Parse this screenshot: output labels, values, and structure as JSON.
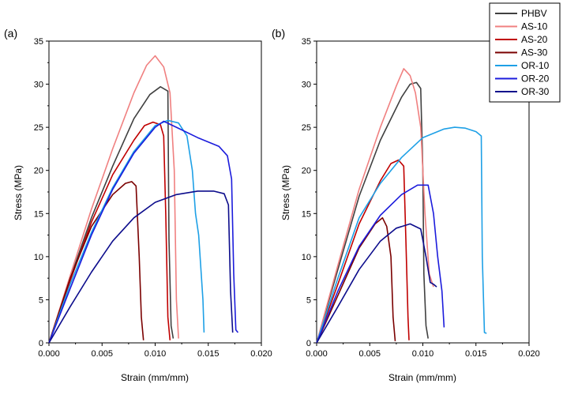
{
  "chart_data": [
    {
      "type": "line",
      "panel_label": "(a)",
      "xlabel": "Strain (mm/mm)",
      "ylabel": "Stress (MPa)",
      "xlim": [
        0,
        0.02
      ],
      "ylim": [
        0,
        35
      ],
      "xticks": [
        "0.000",
        "0.005",
        "0.010",
        "0.015",
        "0.020"
      ],
      "yticks": [
        "0",
        "5",
        "10",
        "15",
        "20",
        "25",
        "30",
        "35"
      ],
      "series": [
        {
          "name": "PHBV",
          "color": "#404040",
          "x": [
            0,
            0.002,
            0.004,
            0.006,
            0.008,
            0.0095,
            0.0105,
            0.0112,
            0.0113,
            0.0115,
            0.0117
          ],
          "y": [
            0,
            7.5,
            14.5,
            20.5,
            26,
            28.8,
            29.7,
            29.2,
            12,
            2,
            0.5
          ]
        },
        {
          "name": "AS-10",
          "color": "#f08080",
          "x": [
            0,
            0.002,
            0.004,
            0.006,
            0.008,
            0.0092,
            0.01,
            0.0108,
            0.0114,
            0.0118,
            0.012,
            0.0122
          ],
          "y": [
            0,
            7.8,
            15.5,
            22.5,
            29,
            32.2,
            33.3,
            32,
            29,
            20,
            5,
            0.5
          ]
        },
        {
          "name": "AS-20",
          "color": "#c00000",
          "x": [
            0,
            0.002,
            0.004,
            0.006,
            0.008,
            0.009,
            0.0098,
            0.0105,
            0.0108,
            0.011,
            0.0112,
            0.0114
          ],
          "y": [
            0,
            7.2,
            14,
            19.5,
            23.5,
            25.2,
            25.6,
            25.3,
            24,
            15,
            3,
            0.3
          ]
        },
        {
          "name": "AS-30",
          "color": "#7a0000",
          "x": [
            0,
            0.002,
            0.004,
            0.006,
            0.0072,
            0.0078,
            0.0082,
            0.0085,
            0.0087,
            0.0089
          ],
          "y": [
            0,
            7.5,
            13.5,
            17.2,
            18.5,
            18.7,
            18.2,
            10,
            3,
            0.3
          ]
        },
        {
          "name": "OR-10",
          "color": "#1ea0e6",
          "x": [
            0,
            0.002,
            0.004,
            0.006,
            0.008,
            0.01,
            0.0112,
            0.0122,
            0.013,
            0.0135,
            0.0138,
            0.0141,
            0.0145,
            0.0146
          ],
          "y": [
            0,
            6.8,
            12.8,
            18,
            22.2,
            25.2,
            25.8,
            25.5,
            24,
            20,
            15,
            12.5,
            5,
            1.2
          ]
        },
        {
          "name": "OR-20",
          "color": "#1c1cdc",
          "x": [
            0,
            0.002,
            0.004,
            0.006,
            0.008,
            0.01,
            0.0108,
            0.012,
            0.014,
            0.016,
            0.0168,
            0.0172,
            0.0174,
            0.0176,
            0.0178
          ],
          "y": [
            0,
            6.3,
            12.5,
            17.8,
            22,
            25,
            25.7,
            25,
            23.8,
            22.8,
            21.7,
            19,
            8,
            1.5,
            1.2
          ]
        },
        {
          "name": "OR-30",
          "color": "#0c0c8c",
          "x": [
            0,
            0.002,
            0.004,
            0.006,
            0.008,
            0.01,
            0.012,
            0.014,
            0.0155,
            0.0165,
            0.0169,
            0.0171,
            0.0173
          ],
          "y": [
            0,
            4.2,
            8.2,
            11.8,
            14.5,
            16.3,
            17.2,
            17.6,
            17.6,
            17.3,
            16,
            6,
            1.2
          ]
        }
      ]
    },
    {
      "type": "line",
      "panel_label": "(b)",
      "xlabel": "Strain (mm/mm)",
      "ylabel": "Stress (MPa)",
      "xlim": [
        0,
        0.02
      ],
      "ylim": [
        0,
        35
      ],
      "xticks": [
        "0.000",
        "0.005",
        "0.010",
        "0.015",
        "0.020"
      ],
      "yticks": [
        "0",
        "5",
        "10",
        "15",
        "20",
        "25",
        "30",
        "35"
      ],
      "series": [
        {
          "name": "PHBV",
          "color": "#404040",
          "x": [
            0,
            0.002,
            0.004,
            0.006,
            0.008,
            0.0088,
            0.0094,
            0.0098,
            0.01,
            0.0101,
            0.0103,
            0.0105
          ],
          "y": [
            0,
            8.5,
            17,
            23.5,
            28.5,
            30,
            30.2,
            29.5,
            20,
            8,
            2,
            0.5
          ]
        },
        {
          "name": "AS-10",
          "color": "#f08080",
          "x": [
            0,
            0.002,
            0.004,
            0.006,
            0.0075,
            0.0082,
            0.0088,
            0.0093,
            0.0098,
            0.0102,
            0.0106,
            0.011
          ],
          "y": [
            0,
            9,
            17.8,
            25,
            29.8,
            31.8,
            31,
            29,
            25,
            15,
            8,
            6.5
          ]
        },
        {
          "name": "AS-20",
          "color": "#c00000",
          "x": [
            0,
            0.002,
            0.004,
            0.006,
            0.007,
            0.0077,
            0.0082,
            0.0084,
            0.0086,
            0.0087
          ],
          "y": [
            0,
            6.8,
            13.8,
            18.8,
            20.8,
            21.2,
            20.5,
            12,
            3,
            0.3
          ]
        },
        {
          "name": "AS-30",
          "color": "#7a0000",
          "x": [
            0,
            0.002,
            0.004,
            0.0055,
            0.0062,
            0.0066,
            0.007,
            0.0072,
            0.0074
          ],
          "y": [
            0,
            5.5,
            11,
            13.8,
            14.5,
            13.5,
            10,
            3,
            0.2
          ]
        },
        {
          "name": "OR-10",
          "color": "#1ea0e6",
          "x": [
            0,
            0.002,
            0.004,
            0.006,
            0.008,
            0.01,
            0.012,
            0.013,
            0.014,
            0.015,
            0.0155,
            0.0156,
            0.0158,
            0.016
          ],
          "y": [
            0,
            7.5,
            14.5,
            18.5,
            21.5,
            23.8,
            24.8,
            25,
            24.9,
            24.5,
            24,
            10,
            1.2,
            1.1
          ]
        },
        {
          "name": "OR-20",
          "color": "#1c1cdc",
          "x": [
            0,
            0.002,
            0.004,
            0.006,
            0.008,
            0.0095,
            0.0105,
            0.011,
            0.0114,
            0.0118,
            0.012
          ],
          "y": [
            0,
            6,
            11.2,
            14.8,
            17.2,
            18.3,
            18.3,
            15,
            10,
            6,
            1.8
          ]
        },
        {
          "name": "OR-30",
          "color": "#0c0c8c",
          "x": [
            0,
            0.002,
            0.004,
            0.006,
            0.0075,
            0.0088,
            0.0098,
            0.0103,
            0.0107,
            0.011,
            0.0113
          ],
          "y": [
            0,
            4.2,
            8.5,
            11.8,
            13.3,
            13.8,
            13.2,
            10,
            7,
            6.8,
            6.5
          ]
        }
      ]
    }
  ],
  "legend": {
    "position": "top-right",
    "entries": [
      {
        "name": "PHBV",
        "color": "#404040"
      },
      {
        "name": "AS-10",
        "color": "#f08080"
      },
      {
        "name": "AS-20",
        "color": "#c00000"
      },
      {
        "name": "AS-30",
        "color": "#7a0000"
      },
      {
        "name": "OR-10",
        "color": "#1ea0e6"
      },
      {
        "name": "OR-20",
        "color": "#1c1cdc"
      },
      {
        "name": "OR-30",
        "color": "#0c0c8c"
      }
    ]
  }
}
